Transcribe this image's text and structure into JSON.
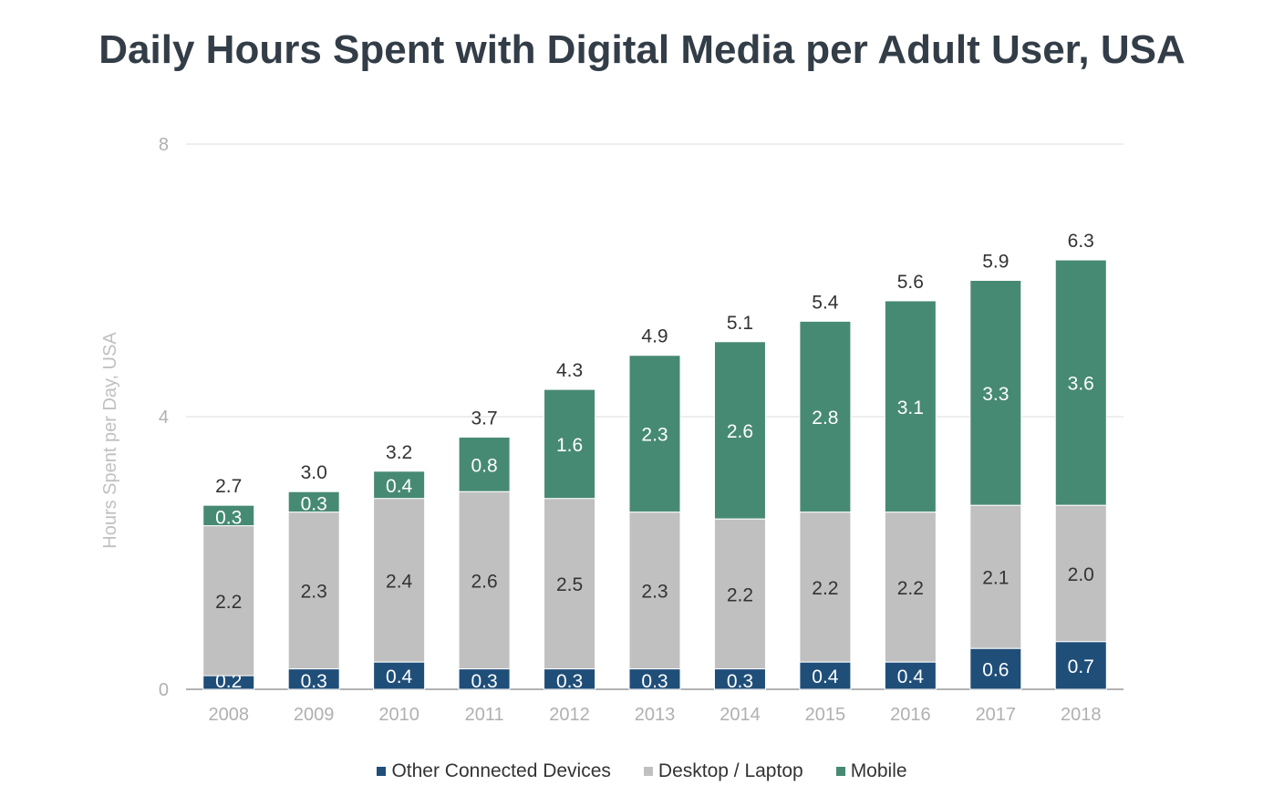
{
  "chart_data": {
    "type": "bar",
    "stacked": true,
    "title": "Daily Hours Spent with Digital Media per Adult User, USA",
    "xlabel": "",
    "ylabel": "Hours Spent per Day, USA",
    "ylim": [
      0,
      8
    ],
    "yticks": [
      "0",
      "4",
      "8"
    ],
    "grid": true,
    "legend_position": "bottom",
    "categories": [
      "2008",
      "2009",
      "2010",
      "2011",
      "2012",
      "2013",
      "2014",
      "2015",
      "2016",
      "2017",
      "2018"
    ],
    "series": [
      {
        "name": "Other Connected Devices",
        "color": "#1f4e79",
        "values": [
          0.2,
          0.3,
          0.4,
          0.3,
          0.3,
          0.3,
          0.3,
          0.4,
          0.4,
          0.6,
          0.7
        ],
        "labels": [
          "0.2",
          "0.3",
          "0.4",
          "0.3",
          "0.3",
          "0.3",
          "0.3",
          "0.4",
          "0.4",
          "0.6",
          "0.7"
        ]
      },
      {
        "name": "Desktop / Laptop",
        "color": "#c0c0c0",
        "values": [
          2.2,
          2.3,
          2.4,
          2.6,
          2.5,
          2.3,
          2.2,
          2.2,
          2.2,
          2.1,
          2.0
        ],
        "labels": [
          "2.2",
          "2.3",
          "2.4",
          "2.6",
          "2.5",
          "2.3",
          "2.2",
          "2.2",
          "2.2",
          "2.1",
          "2.0"
        ]
      },
      {
        "name": "Mobile",
        "color": "#478a73",
        "values": [
          0.3,
          0.3,
          0.4,
          0.8,
          1.6,
          2.3,
          2.6,
          2.8,
          3.1,
          3.3,
          3.6
        ],
        "labels": [
          "0.3",
          "0.3",
          "0.4",
          "0.8",
          "1.6",
          "2.3",
          "2.6",
          "2.8",
          "3.1",
          "3.3",
          "3.6"
        ]
      }
    ],
    "totals": [
      "2.7",
      "3.0",
      "3.2",
      "3.7",
      "4.3",
      "4.9",
      "5.1",
      "5.4",
      "5.6",
      "5.9",
      "6.3"
    ]
  }
}
